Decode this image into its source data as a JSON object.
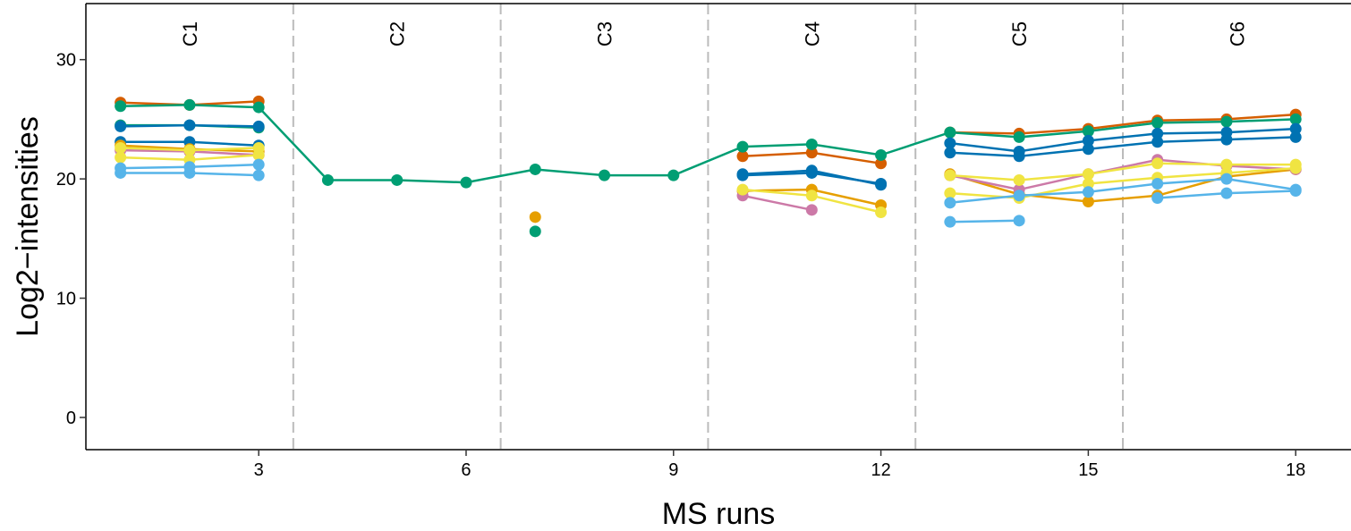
{
  "chart_data": {
    "type": "line",
    "xlabel": "MS runs",
    "ylabel": "Log2−intensities",
    "xlim": [
      0.5,
      18.8
    ],
    "ylim": [
      -2.7,
      34.7
    ],
    "x_ticks": [
      3,
      6,
      9,
      12,
      15,
      18
    ],
    "y_ticks": [
      0,
      10,
      20,
      30
    ],
    "grid": false,
    "legend": "none",
    "conditions": [
      {
        "label": "C1",
        "x_start": 0.5,
        "x_end": 3.5
      },
      {
        "label": "C2",
        "x_start": 3.5,
        "x_end": 6.5
      },
      {
        "label": "C3",
        "x_start": 6.5,
        "x_end": 9.5
      },
      {
        "label": "C4",
        "x_start": 9.5,
        "x_end": 12.5
      },
      {
        "label": "C5",
        "x_start": 12.5,
        "x_end": 15.5
      },
      {
        "label": "C6",
        "x_start": 15.5,
        "x_end": 18.8
      }
    ],
    "condition_dividers": [
      3.5,
      6.5,
      9.5,
      12.5,
      15.5
    ],
    "divider_color": "#bbbbbb",
    "series": [
      {
        "color": "#D55E00",
        "x": [
          1,
          2,
          3
        ],
        "y": [
          26.4,
          26.2,
          26.5
        ]
      },
      {
        "color": "#D55E00",
        "x": [
          10,
          11,
          12
        ],
        "y": [
          21.9,
          22.2,
          21.3
        ]
      },
      {
        "color": "#D55E00",
        "x": [
          13,
          14,
          15,
          16,
          17,
          18
        ],
        "y": [
          23.9,
          23.8,
          24.2,
          24.9,
          25.0,
          25.4
        ]
      },
      {
        "color": "#009E73",
        "x": [
          1,
          2,
          3,
          4,
          5,
          6,
          7,
          8,
          9,
          10,
          11,
          12,
          13,
          14,
          15,
          16,
          17,
          18
        ],
        "y": [
          26.1,
          26.2,
          26.0,
          19.9,
          19.9,
          19.7,
          20.8,
          20.3,
          20.3,
          22.7,
          22.9,
          22.0,
          23.9,
          23.5,
          24.0,
          24.7,
          24.8,
          25.0
        ]
      },
      {
        "color": "#009E73",
        "x": [
          1,
          2,
          3
        ],
        "y": [
          24.5,
          24.5,
          24.3
        ]
      },
      {
        "color": "#009E73",
        "x": [
          7
        ],
        "y": [
          15.6
        ]
      },
      {
        "color": "#0072B2",
        "x": [
          1,
          2,
          3
        ],
        "y": [
          24.4,
          24.5,
          24.4
        ]
      },
      {
        "color": "#0072B2",
        "x": [
          1,
          2,
          3
        ],
        "y": [
          23.1,
          23.1,
          22.8
        ]
      },
      {
        "color": "#0072B2",
        "x": [
          10,
          11,
          12
        ],
        "y": [
          20.4,
          20.7,
          19.5
        ]
      },
      {
        "color": "#0072B2",
        "x": [
          10,
          11,
          12
        ],
        "y": [
          20.3,
          20.5,
          19.6
        ]
      },
      {
        "color": "#0072B2",
        "x": [
          13,
          14,
          15,
          16,
          17,
          18
        ],
        "y": [
          23.0,
          22.3,
          23.2,
          23.8,
          23.9,
          24.2
        ]
      },
      {
        "color": "#0072B2",
        "x": [
          13,
          14,
          15,
          16,
          17,
          18
        ],
        "y": [
          22.2,
          21.9,
          22.5,
          23.1,
          23.3,
          23.5
        ]
      },
      {
        "color": "#E69F00",
        "x": [
          1,
          2,
          3
        ],
        "y": [
          22.8,
          22.5,
          22.3
        ]
      },
      {
        "color": "#E69F00",
        "x": [
          7
        ],
        "y": [
          16.8
        ]
      },
      {
        "color": "#E69F00",
        "x": [
          10,
          11,
          12
        ],
        "y": [
          19.0,
          19.1,
          17.8
        ]
      },
      {
        "color": "#E69F00",
        "x": [
          13,
          14,
          15,
          16,
          17,
          18
        ],
        "y": [
          20.4,
          18.7,
          18.1,
          18.6,
          20.2,
          20.8
        ]
      },
      {
        "color": "#CC79A7",
        "x": [
          1,
          2,
          3
        ],
        "y": [
          22.4,
          22.3,
          22.0
        ]
      },
      {
        "color": "#CC79A7",
        "x": [
          10,
          11
        ],
        "y": [
          18.6,
          17.4
        ]
      },
      {
        "color": "#CC79A7",
        "x": [
          13,
          14,
          15,
          16,
          17,
          18
        ],
        "y": [
          20.3,
          19.1,
          20.4,
          21.6,
          21.1,
          20.8
        ]
      },
      {
        "color": "#F0E442",
        "x": [
          1,
          2,
          3
        ],
        "y": [
          22.6,
          22.4,
          22.6
        ]
      },
      {
        "color": "#F0E442",
        "x": [
          1,
          2,
          3
        ],
        "y": [
          21.8,
          21.6,
          22.0
        ]
      },
      {
        "color": "#F0E442",
        "x": [
          10,
          11,
          12
        ],
        "y": [
          19.1,
          18.6,
          17.2
        ]
      },
      {
        "color": "#F0E442",
        "x": [
          13,
          14,
          15,
          16,
          17,
          18
        ],
        "y": [
          20.3,
          19.9,
          20.4,
          21.3,
          21.2,
          21.2
        ]
      },
      {
        "color": "#F0E442",
        "x": [
          13,
          14,
          15,
          16,
          17,
          18
        ],
        "y": [
          18.8,
          18.4,
          19.6,
          20.1,
          20.5,
          20.9
        ]
      },
      {
        "color": "#56B4E9",
        "x": [
          1,
          2,
          3
        ],
        "y": [
          20.9,
          21.0,
          21.2
        ]
      },
      {
        "color": "#56B4E9",
        "x": [
          1,
          2,
          3
        ],
        "y": [
          20.5,
          20.5,
          20.3
        ]
      },
      {
        "color": "#56B4E9",
        "x": [
          13,
          14
        ],
        "y": [
          16.4,
          16.5
        ]
      },
      {
        "color": "#56B4E9",
        "x": [
          13,
          14,
          15,
          16,
          17,
          18
        ],
        "y": [
          18.0,
          18.6,
          18.9,
          19.6,
          20.0,
          19.1
        ]
      },
      {
        "color": "#56B4E9",
        "x": [
          16,
          17,
          18
        ],
        "y": [
          18.4,
          18.8,
          19.0
        ]
      }
    ]
  }
}
